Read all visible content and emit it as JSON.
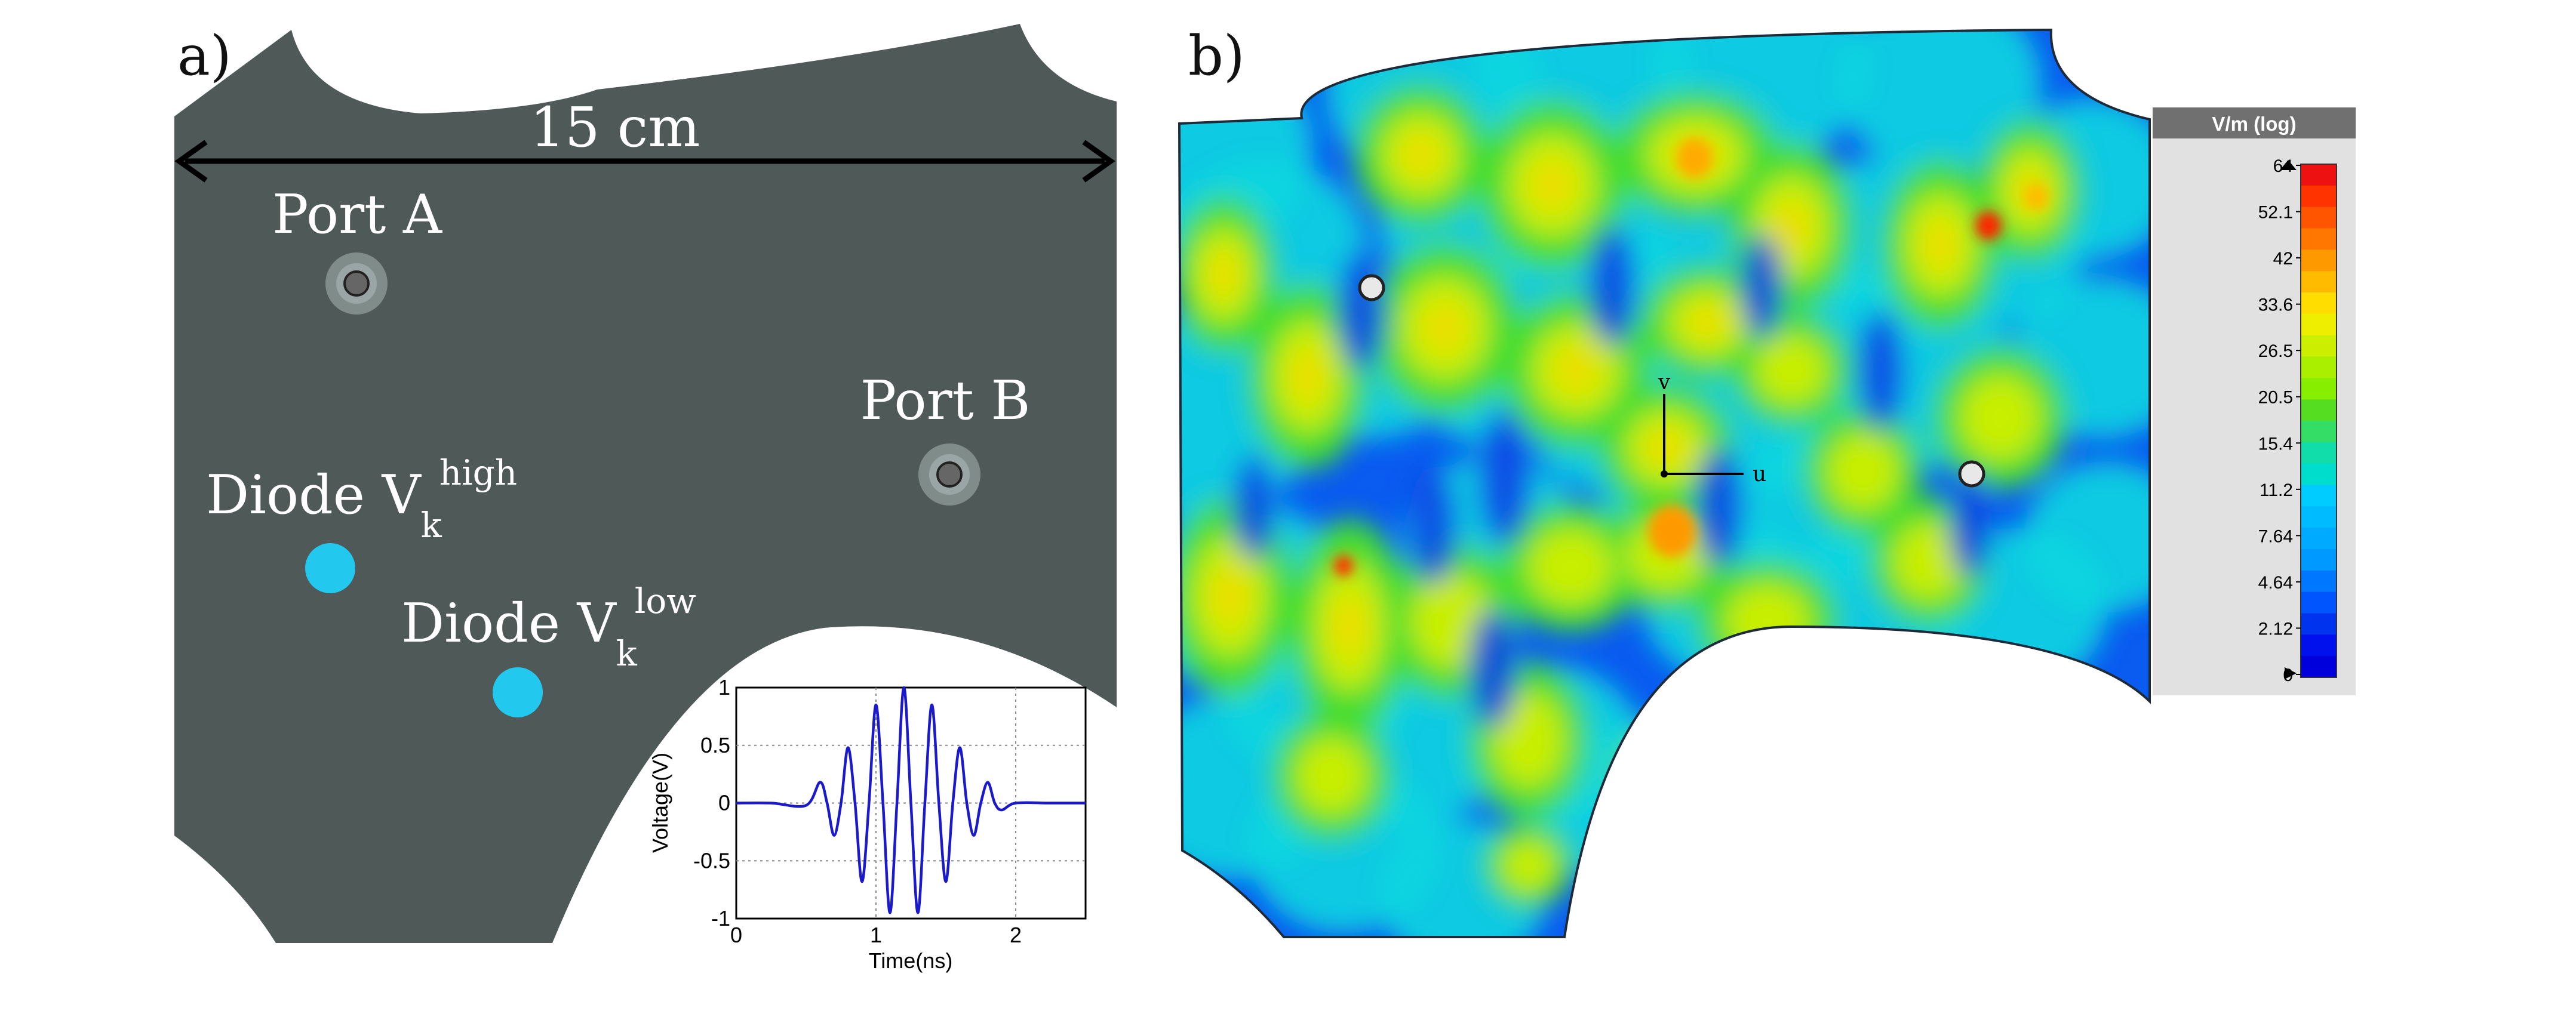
{
  "panel_a": {
    "label": "a)",
    "dimension": "15 cm",
    "port_a": "Port A",
    "port_b": "Port B",
    "diode_high": {
      "text": "Diode V",
      "sub": "k",
      "sup": "high"
    },
    "diode_low": {
      "text": "Diode V",
      "sub": "k",
      "sup": "low"
    }
  },
  "panel_b": {
    "label": "b)",
    "axis_v": "v",
    "axis_u": "u"
  },
  "colorbar": {
    "title": "V/m (log)",
    "ticks": [
      "64",
      "52.1",
      "42",
      "33.6",
      "26.5",
      "20.5",
      "15.4",
      "11.2",
      "7.64",
      "4.64",
      "2.12",
      "0"
    ]
  },
  "colors": {
    "plate": "#4f5a58",
    "diode": "#22c8ee",
    "port_ring": "#8c9a9a",
    "field_background": "#00b7ff"
  },
  "chart_data": {
    "type": "line",
    "title": "",
    "xlabel": "Time(ns)",
    "ylabel": "Voltage(V)",
    "xlim": [
      0,
      2.5
    ],
    "ylim": [
      -1,
      1
    ],
    "xticks": [
      0,
      1,
      2
    ],
    "yticks": [
      1,
      0.5,
      0,
      -0.5,
      -1
    ],
    "grid": true,
    "series": [
      {
        "x": [
          0,
          0.25,
          0.5,
          0.6,
          0.65,
          0.7,
          0.75,
          0.8,
          0.85,
          0.9,
          0.95,
          1.0,
          1.05,
          1.1,
          1.15,
          1.2,
          1.25,
          1.3,
          1.35,
          1.4,
          1.45,
          1.5,
          1.55,
          1.6,
          1.65,
          1.7,
          1.75,
          1.8,
          1.85,
          1.9,
          2.0,
          2.25,
          2.5
        ],
        "y": [
          0,
          0.0,
          -0.02,
          0.18,
          0.0,
          -0.28,
          0.0,
          0.48,
          0.0,
          -0.68,
          0.0,
          0.85,
          0.0,
          -0.95,
          0.0,
          1.0,
          0.0,
          -0.95,
          0.0,
          0.85,
          0.0,
          -0.68,
          0.0,
          0.48,
          0.0,
          -0.28,
          0.0,
          0.18,
          0.0,
          -0.06,
          0.0,
          0.0,
          0.0
        ]
      }
    ]
  }
}
